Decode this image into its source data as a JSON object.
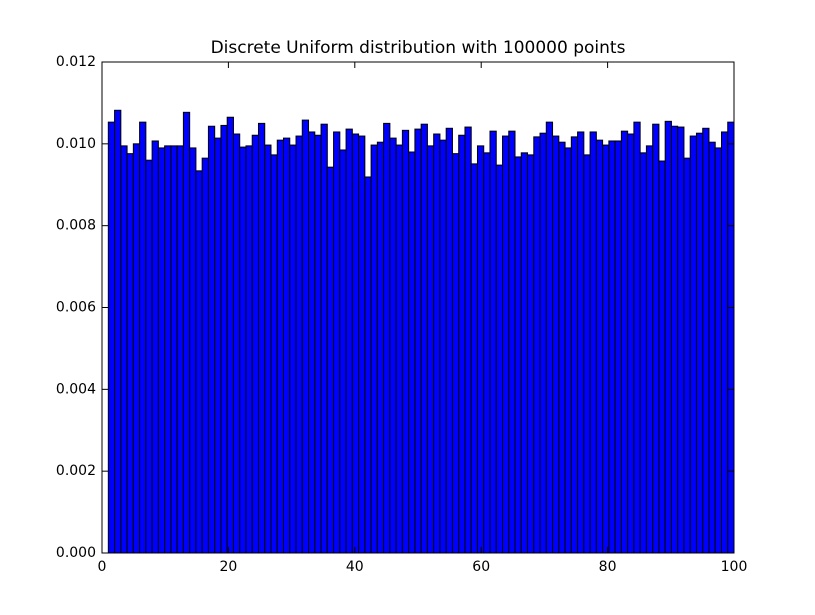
{
  "chart_data": {
    "type": "histogram",
    "title": "Discrete Uniform distribution with 100000 points",
    "bins": [
      1,
      1.99,
      2.98,
      3.97,
      4.96,
      5.95,
      6.94,
      7.93,
      8.92,
      9.91,
      10.9,
      11.89,
      12.88,
      13.87,
      14.86,
      15.85,
      16.84,
      17.83,
      18.82,
      19.81,
      20.8,
      21.79,
      22.78,
      23.77,
      24.76,
      25.75,
      26.74,
      27.73,
      28.72,
      29.71,
      30.7,
      31.69,
      32.68,
      33.67,
      34.66,
      35.65,
      36.64,
      37.63,
      38.62,
      39.61,
      40.6,
      41.59,
      42.58,
      43.57,
      44.56,
      45.55,
      46.54,
      47.53,
      48.52,
      49.51,
      50.5,
      51.49,
      52.48,
      53.47,
      54.46,
      55.45,
      56.44,
      57.43,
      58.42,
      59.41,
      60.4,
      61.39,
      62.38,
      63.37,
      64.36,
      65.35,
      66.34,
      67.33,
      68.32,
      69.31,
      70.3,
      71.29,
      72.28,
      73.27,
      74.26,
      75.25,
      76.24,
      77.23,
      78.22,
      79.21,
      80.2,
      81.19,
      82.18,
      83.17,
      84.16,
      85.15,
      86.14,
      87.13,
      88.12,
      89.11,
      90.1,
      91.09,
      92.08,
      93.07,
      94.06,
      95.05,
      96.04,
      97.03,
      98.02,
      99.01,
      100
    ],
    "values": [
      0.01053,
      0.01082,
      0.00995,
      0.00976,
      0.01,
      0.01053,
      0.0096,
      0.01007,
      0.0099,
      0.00995,
      0.00995,
      0.00995,
      0.01077,
      0.0099,
      0.00934,
      0.00965,
      0.01043,
      0.01014,
      0.01045,
      0.01065,
      0.01024,
      0.00992,
      0.00995,
      0.01021,
      0.0105,
      0.00997,
      0.00973,
      0.01009,
      0.01014,
      0.00997,
      0.01019,
      0.01058,
      0.01029,
      0.01021,
      0.01048,
      0.00943,
      0.01029,
      0.00985,
      0.01036,
      0.01024,
      0.01019,
      0.00919,
      0.00997,
      0.01004,
      0.0105,
      0.01014,
      0.00997,
      0.01033,
      0.0098,
      0.01036,
      0.01048,
      0.00995,
      0.01024,
      0.01009,
      0.01038,
      0.00976,
      0.01021,
      0.01041,
      0.00951,
      0.00995,
      0.00978,
      0.01031,
      0.00948,
      0.01019,
      0.01031,
      0.00968,
      0.00978,
      0.00973,
      0.01017,
      0.01026,
      0.01053,
      0.01019,
      0.01004,
      0.0099,
      0.01017,
      0.01029,
      0.00973,
      0.01029,
      0.01009,
      0.00997,
      0.01007,
      0.01007,
      0.01031,
      0.01024,
      0.01053,
      0.00978,
      0.00995,
      0.01048,
      0.00958,
      0.01055,
      0.01043,
      0.01041,
      0.00965,
      0.01019,
      0.01026,
      0.01038,
      0.01004,
      0.0099,
      0.01029,
      0.01053
    ],
    "color": "#0000ff",
    "xlim": [
      0,
      100
    ],
    "xticks": [
      0,
      20,
      40,
      60,
      80,
      100
    ],
    "ylim": [
      0,
      0.012
    ],
    "yticks": [
      {
        "value": 0,
        "label": "0.000"
      },
      {
        "value": 0.002,
        "label": "0.002"
      },
      {
        "value": 0.004,
        "label": "0.004"
      },
      {
        "value": 0.006,
        "label": "0.006"
      },
      {
        "value": 0.008,
        "label": "0.008"
      },
      {
        "value": 0.01,
        "label": "0.010"
      },
      {
        "value": 0.012,
        "label": "0.012"
      }
    ]
  }
}
